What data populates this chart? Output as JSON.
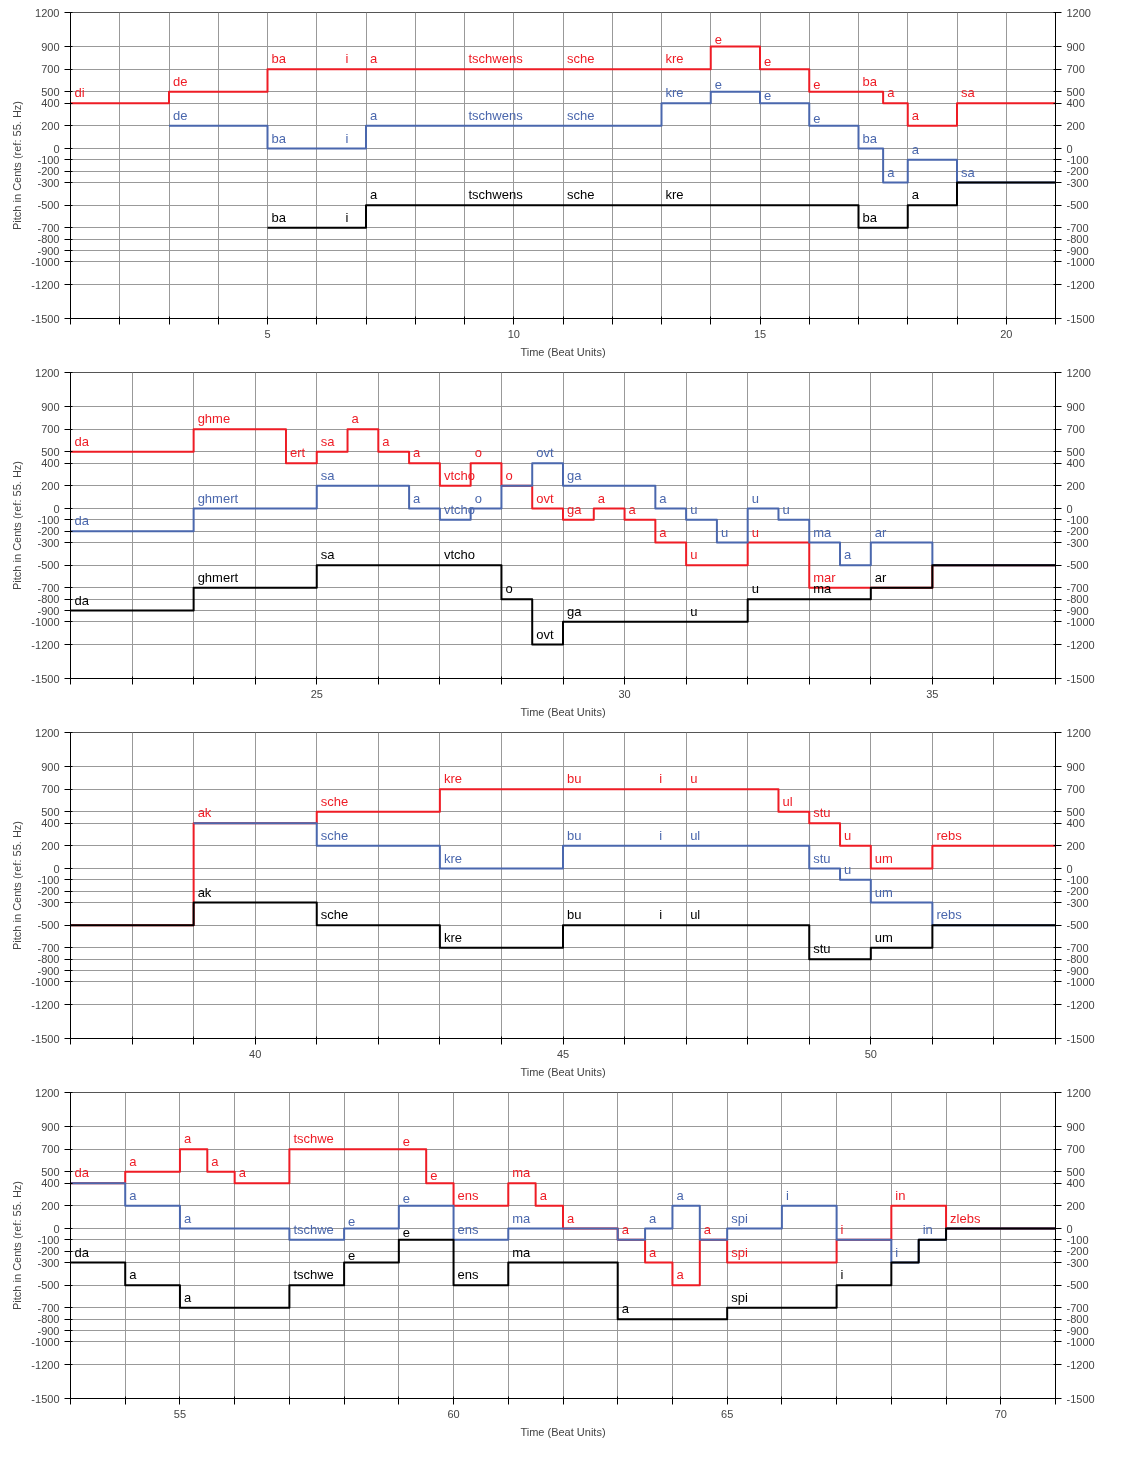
{
  "chart_data": [
    {
      "type": "step",
      "xlabel": "Time (Beat Units)",
      "ylabel": "Pitch in Cents (ref: 55. Hz)",
      "grid": true,
      "xlim": [
        1,
        21
      ],
      "xticks": [
        {
          "value": 1,
          "label": null
        },
        {
          "value": 2,
          "label": null
        },
        {
          "value": 3,
          "label": null
        },
        {
          "value": 4,
          "label": null
        },
        5,
        {
          "value": 6,
          "label": null
        },
        {
          "value": 7,
          "label": null
        },
        {
          "value": 8,
          "label": null
        },
        {
          "value": 9,
          "label": null
        },
        10,
        {
          "value": 11,
          "label": null
        },
        {
          "value": 12,
          "label": null
        },
        {
          "value": 13,
          "label": null
        },
        {
          "value": 14,
          "label": null
        },
        15,
        {
          "value": 16,
          "label": null
        },
        {
          "value": 17,
          "label": null
        },
        {
          "value": 18,
          "label": null
        },
        {
          "value": 19,
          "label": null
        },
        20,
        {
          "value": 21,
          "label": null
        }
      ],
      "ylim": [
        -1500,
        1200
      ],
      "yticks": [
        1200,
        900,
        700,
        500,
        400,
        200,
        0,
        -100,
        -200,
        -300,
        -500,
        -700,
        -800,
        -900,
        -1000,
        -1200,
        -1500
      ],
      "y2lim": [
        -1500,
        1200
      ],
      "y2ticks": [
        1200,
        900,
        700,
        500,
        400,
        200,
        0,
        -100,
        -200,
        -300,
        -500,
        -700,
        -800,
        -900,
        -1000,
        -1200,
        -1500
      ],
      "series": [
        {
          "color": "#ee1c25",
          "x": [
            1,
            3,
            5,
            6.5,
            7,
            9,
            11,
            13,
            14,
            15,
            16,
            17,
            17.5,
            18,
            19,
            21
          ],
          "values": [
            400,
            500,
            700,
            700,
            700,
            700,
            700,
            700,
            900,
            700,
            500,
            500,
            400,
            200,
            400,
            400
          ]
        },
        {
          "color": "#4a67ad",
          "x": [
            3,
            5,
            6.5,
            7,
            9,
            11,
            13,
            14,
            15,
            16,
            17,
            17.5,
            18,
            19,
            21
          ],
          "values": [
            200,
            0,
            0,
            200,
            200,
            200,
            400,
            500,
            400,
            200,
            0,
            -300,
            -100,
            -300,
            -300
          ]
        },
        {
          "color": "#000000",
          "x": [
            5,
            6.5,
            7,
            9,
            11,
            13,
            17,
            18,
            19,
            21
          ],
          "values": [
            -700,
            -700,
            -500,
            -500,
            -500,
            -500,
            -700,
            -500,
            -300,
            -300
          ]
        }
      ],
      "annotations": [
        {
          "text": "di",
          "x": 1,
          "y": 400
        },
        {
          "text": "de",
          "x": 3,
          "y": 500
        },
        {
          "text": "ba",
          "x": 5,
          "y": 700
        },
        {
          "text": "i",
          "x": 6.5,
          "y": 700
        },
        {
          "text": "a",
          "x": 7,
          "y": 700
        },
        {
          "text": "tschwens",
          "x": 9,
          "y": 700
        },
        {
          "text": "sche",
          "x": 11,
          "y": 700
        },
        {
          "text": "kre",
          "x": 13,
          "y": 700
        },
        {
          "text": "e",
          "x": 14,
          "y": 900
        },
        {
          "text": "e",
          "x": 15,
          "y": 700
        },
        {
          "text": "e",
          "x": 16,
          "y": 500
        },
        {
          "text": "ba",
          "x": 17,
          "y": 500
        },
        {
          "text": "a",
          "x": 17.5,
          "y": 400
        },
        {
          "text": "a",
          "x": 18,
          "y": 200
        },
        {
          "text": "sa",
          "x": 19,
          "y": 400
        },
        {
          "text": "de",
          "x": 3,
          "y": 200
        },
        {
          "text": "ba",
          "x": 5,
          "y": 0
        },
        {
          "text": "i",
          "x": 6.5,
          "y": 0
        },
        {
          "text": "a",
          "x": 7,
          "y": 200
        },
        {
          "text": "tschwens",
          "x": 9,
          "y": 200
        },
        {
          "text": "sche",
          "x": 11,
          "y": 200
        },
        {
          "text": "kre",
          "x": 13,
          "y": 400
        },
        {
          "text": "e",
          "x": 14,
          "y": 500
        },
        {
          "text": "e",
          "x": 15,
          "y": 400
        },
        {
          "text": "e",
          "x": 16,
          "y": 200
        },
        {
          "text": "ba",
          "x": 17,
          "y": 0
        },
        {
          "text": "a",
          "x": 17.5,
          "y": -300
        },
        {
          "text": "a",
          "x": 18,
          "y": -100
        },
        {
          "text": "sa",
          "x": 19,
          "y": -300
        },
        {
          "text": "ba",
          "x": 5,
          "y": -700
        },
        {
          "text": "i",
          "x": 6.5,
          "y": -700
        },
        {
          "text": "a",
          "x": 7,
          "y": -500
        },
        {
          "text": "tschwens",
          "x": 9,
          "y": -500
        },
        {
          "text": "sche",
          "x": 11,
          "y": -500
        },
        {
          "text": "kre",
          "x": 13,
          "y": -500
        },
        {
          "text": "ba",
          "x": 17,
          "y": -700
        },
        {
          "text": "a",
          "x": 18,
          "y": -500
        }
      ]
    },
    {
      "type": "step",
      "xlabel": "Time (Beat Units)",
      "ylabel": "Pitch in Cents (ref: 55. Hz)",
      "grid": true,
      "xlim": [
        21,
        37
      ],
      "xticks": [
        {
          "value": 21,
          "label": null
        },
        {
          "value": 22,
          "label": null
        },
        {
          "value": 23,
          "label": null
        },
        {
          "value": 24,
          "label": null
        },
        25,
        {
          "value": 26,
          "label": null
        },
        {
          "value": 27,
          "label": null
        },
        {
          "value": 28,
          "label": null
        },
        {
          "value": 29,
          "label": null
        },
        30,
        {
          "value": 31,
          "label": null
        },
        {
          "value": 32,
          "label": null
        },
        {
          "value": 33,
          "label": null
        },
        {
          "value": 34,
          "label": null
        },
        35,
        {
          "value": 36,
          "label": null
        },
        {
          "value": 37,
          "label": null
        }
      ],
      "ylim": [
        -1500,
        1200
      ],
      "yticks": [
        1200,
        900,
        700,
        500,
        400,
        200,
        0,
        -100,
        -200,
        -300,
        -500,
        -700,
        -800,
        -900,
        -1000,
        -1200,
        -1500
      ],
      "y2lim": [
        -1500,
        1200
      ],
      "y2ticks": [
        1200,
        900,
        700,
        500,
        400,
        200,
        0,
        -100,
        -200,
        -300,
        -500,
        -700,
        -800,
        -900,
        -1000,
        -1200,
        -1500
      ],
      "series": [
        {
          "color": "#ee1c25",
          "x": [
            21,
            23,
            24.5,
            25,
            25.5,
            26,
            26.5,
            27,
            27.5,
            28,
            28.5,
            29,
            29.5,
            30,
            30.5,
            31,
            32,
            33,
            35,
            37
          ],
          "values": [
            500,
            700,
            400,
            500,
            700,
            500,
            400,
            200,
            400,
            200,
            0,
            -100,
            0,
            -100,
            -300,
            -500,
            -300,
            -700,
            -500,
            -500
          ]
        },
        {
          "color": "#4a67ad",
          "x": [
            21,
            23,
            25,
            26.5,
            27,
            27.5,
            28,
            28.5,
            29,
            30.5,
            31,
            31.5,
            32,
            32.5,
            33,
            33.5,
            34,
            35,
            37
          ],
          "values": [
            -200,
            0,
            200,
            0,
            -100,
            0,
            200,
            400,
            200,
            0,
            -100,
            -300,
            0,
            -100,
            -300,
            -500,
            -300,
            -500,
            -500
          ]
        },
        {
          "color": "#000000",
          "x": [
            21,
            23,
            25,
            27,
            28,
            28.5,
            29,
            31,
            32,
            33,
            34,
            35,
            37
          ],
          "values": [
            -900,
            -700,
            -500,
            -500,
            -800,
            -1200,
            -1000,
            -1000,
            -800,
            -800,
            -700,
            -500,
            -500
          ]
        }
      ],
      "annotations": [
        {
          "text": "da",
          "x": 21,
          "y": 500
        },
        {
          "text": "ghme",
          "x": 23,
          "y": 700
        },
        {
          "text": "ert",
          "x": 24.5,
          "y": 400
        },
        {
          "text": "sa",
          "x": 25,
          "y": 500
        },
        {
          "text": "a",
          "x": 25.5,
          "y": 700
        },
        {
          "text": "a",
          "x": 26,
          "y": 500
        },
        {
          "text": "a",
          "x": 26.5,
          "y": 400
        },
        {
          "text": "vtcho",
          "x": 27,
          "y": 200
        },
        {
          "text": "o",
          "x": 27.5,
          "y": 400
        },
        {
          "text": "o",
          "x": 28,
          "y": 200
        },
        {
          "text": "ovt",
          "x": 28.5,
          "y": 0
        },
        {
          "text": "ga",
          "x": 29,
          "y": -100
        },
        {
          "text": "a",
          "x": 29.5,
          "y": 0
        },
        {
          "text": "a",
          "x": 30,
          "y": -100
        },
        {
          "text": "a",
          "x": 30.5,
          "y": -300
        },
        {
          "text": "u",
          "x": 31,
          "y": -500
        },
        {
          "text": "u",
          "x": 32,
          "y": -300
        },
        {
          "text": "mar",
          "x": 33,
          "y": -700
        },
        {
          "text": "da",
          "x": 21,
          "y": -200
        },
        {
          "text": "ghmert",
          "x": 23,
          "y": 0
        },
        {
          "text": "sa",
          "x": 25,
          "y": 200
        },
        {
          "text": "a",
          "x": 26.5,
          "y": 0
        },
        {
          "text": "vtcho",
          "x": 27,
          "y": -100
        },
        {
          "text": "o",
          "x": 27.5,
          "y": 0
        },
        {
          "text": "ovt",
          "x": 28.5,
          "y": 400
        },
        {
          "text": "ga",
          "x": 29,
          "y": 200
        },
        {
          "text": "a",
          "x": 30.5,
          "y": 0
        },
        {
          "text": "u",
          "x": 31,
          "y": -100
        },
        {
          "text": "u",
          "x": 31.5,
          "y": -300
        },
        {
          "text": "u",
          "x": 32,
          "y": 0
        },
        {
          "text": "u",
          "x": 32.5,
          "y": -100
        },
        {
          "text": "ma",
          "x": 33,
          "y": -300
        },
        {
          "text": "a",
          "x": 33.5,
          "y": -500
        },
        {
          "text": "ar",
          "x": 34,
          "y": -300
        },
        {
          "text": "da",
          "x": 21,
          "y": -900
        },
        {
          "text": "ghmert",
          "x": 23,
          "y": -700
        },
        {
          "text": "sa",
          "x": 25,
          "y": -500
        },
        {
          "text": "vtcho",
          "x": 27,
          "y": -500
        },
        {
          "text": "o",
          "x": 28,
          "y": -800
        },
        {
          "text": "ovt",
          "x": 28.5,
          "y": -1200
        },
        {
          "text": "ga",
          "x": 29,
          "y": -1000
        },
        {
          "text": "u",
          "x": 31,
          "y": -1000
        },
        {
          "text": "u",
          "x": 32,
          "y": -800
        },
        {
          "text": "ma",
          "x": 33,
          "y": -800
        },
        {
          "text": "ar",
          "x": 34,
          "y": -700
        }
      ]
    },
    {
      "type": "step",
      "xlabel": "Time (Beat Units)",
      "ylabel": "Pitch in Cents (ref: 55. Hz)",
      "grid": true,
      "xlim": [
        37,
        53
      ],
      "xticks": [
        {
          "value": 37,
          "label": null
        },
        {
          "value": 38,
          "label": null
        },
        {
          "value": 39,
          "label": null
        },
        40,
        {
          "value": 41,
          "label": null
        },
        {
          "value": 42,
          "label": null
        },
        {
          "value": 43,
          "label": null
        },
        {
          "value": 44,
          "label": null
        },
        45,
        {
          "value": 46,
          "label": null
        },
        {
          "value": 47,
          "label": null
        },
        {
          "value": 48,
          "label": null
        },
        {
          "value": 49,
          "label": null
        },
        50,
        {
          "value": 51,
          "label": null
        },
        {
          "value": 52,
          "label": null
        },
        {
          "value": 53,
          "label": null
        }
      ],
      "ylim": [
        -1500,
        1200
      ],
      "yticks": [
        1200,
        900,
        700,
        500,
        400,
        200,
        0,
        -100,
        -200,
        -300,
        -500,
        -700,
        -800,
        -900,
        -1000,
        -1200,
        -1500
      ],
      "y2lim": [
        -1500,
        1200
      ],
      "y2ticks": [
        1200,
        900,
        700,
        500,
        400,
        200,
        0,
        -100,
        -200,
        -300,
        -500,
        -700,
        -800,
        -900,
        -1000,
        -1200,
        -1500
      ],
      "series": [
        {
          "color": "#ee1c25",
          "x": [
            37,
            39,
            41,
            43,
            45,
            46.5,
            47,
            48.5,
            49,
            49.5,
            50,
            51,
            53
          ],
          "values": [
            -500,
            400,
            500,
            700,
            700,
            700,
            700,
            500,
            400,
            200,
            0,
            200,
            200
          ]
        },
        {
          "color": "#4a67ad",
          "x": [
            39,
            41,
            43,
            45,
            46.5,
            47,
            49,
            49.5,
            50,
            51,
            53
          ],
          "values": [
            400,
            200,
            0,
            200,
            200,
            200,
            0,
            -100,
            -300,
            -500,
            -500
          ]
        },
        {
          "color": "#000000",
          "x": [
            37,
            39,
            41,
            43,
            45,
            46.5,
            47,
            49,
            50,
            51,
            53
          ],
          "values": [
            -500,
            -300,
            -500,
            -700,
            -500,
            -500,
            -500,
            -800,
            -700,
            -500,
            -500
          ]
        }
      ],
      "annotations": [
        {
          "text": "ak",
          "x": 39,
          "y": 400
        },
        {
          "text": "sche",
          "x": 41,
          "y": 500
        },
        {
          "text": "kre",
          "x": 43,
          "y": 700
        },
        {
          "text": "bu",
          "x": 45,
          "y": 700
        },
        {
          "text": "i",
          "x": 46.5,
          "y": 700
        },
        {
          "text": "u",
          "x": 47,
          "y": 700
        },
        {
          "text": "ul",
          "x": 48.5,
          "y": 500
        },
        {
          "text": "stu",
          "x": 49,
          "y": 400
        },
        {
          "text": "u",
          "x": 49.5,
          "y": 200
        },
        {
          "text": "um",
          "x": 50,
          "y": 0
        },
        {
          "text": "rebs",
          "x": 51,
          "y": 200
        },
        {
          "text": "sche",
          "x": 41,
          "y": 200
        },
        {
          "text": "kre",
          "x": 43,
          "y": 0
        },
        {
          "text": "bu",
          "x": 45,
          "y": 200
        },
        {
          "text": "i",
          "x": 46.5,
          "y": 200
        },
        {
          "text": "ul",
          "x": 47,
          "y": 200
        },
        {
          "text": "stu",
          "x": 49,
          "y": 0
        },
        {
          "text": "u",
          "x": 49.5,
          "y": -100
        },
        {
          "text": "um",
          "x": 50,
          "y": -300
        },
        {
          "text": "rebs",
          "x": 51,
          "y": -500
        },
        {
          "text": "ak",
          "x": 39,
          "y": -300
        },
        {
          "text": "sche",
          "x": 41,
          "y": -500
        },
        {
          "text": "kre",
          "x": 43,
          "y": -700
        },
        {
          "text": "bu",
          "x": 45,
          "y": -500
        },
        {
          "text": "i",
          "x": 46.5,
          "y": -500
        },
        {
          "text": "ul",
          "x": 47,
          "y": -500
        },
        {
          "text": "stu",
          "x": 49,
          "y": -800
        },
        {
          "text": "um",
          "x": 50,
          "y": -700
        }
      ]
    },
    {
      "type": "step",
      "xlabel": "Time (Beat Units)",
      "ylabel": "Pitch in Cents (ref: 55. Hz)",
      "grid": true,
      "xlim": [
        53,
        71
      ],
      "xticks": [
        {
          "value": 53,
          "label": null
        },
        {
          "value": 54,
          "label": null
        },
        55,
        {
          "value": 56,
          "label": null
        },
        {
          "value": 57,
          "label": null
        },
        {
          "value": 58,
          "label": null
        },
        {
          "value": 59,
          "label": null
        },
        60,
        {
          "value": 61,
          "label": null
        },
        {
          "value": 62,
          "label": null
        },
        {
          "value": 63,
          "label": null
        },
        {
          "value": 64,
          "label": null
        },
        65,
        {
          "value": 66,
          "label": null
        },
        {
          "value": 67,
          "label": null
        },
        {
          "value": 68,
          "label": null
        },
        {
          "value": 69,
          "label": null
        },
        70,
        {
          "value": 71,
          "label": null
        }
      ],
      "ylim": [
        -1500,
        1200
      ],
      "yticks": [
        1200,
        900,
        700,
        500,
        400,
        200,
        0,
        -100,
        -200,
        -300,
        -500,
        -700,
        -800,
        -900,
        -1000,
        -1200,
        -1500
      ],
      "y2lim": [
        -1500,
        1200
      ],
      "y2ticks": [
        1200,
        900,
        700,
        500,
        400,
        200,
        0,
        -100,
        -200,
        -300,
        -500,
        -700,
        -800,
        -900,
        -1000,
        -1200,
        -1500
      ],
      "series": [
        {
          "color": "#ee1c25",
          "x": [
            53,
            54,
            55,
            55.5,
            56,
            57,
            59,
            59.5,
            60,
            61,
            61.5,
            62,
            63,
            63.5,
            64,
            64.5,
            65,
            67,
            68,
            69,
            71
          ],
          "values": [
            400,
            500,
            700,
            500,
            400,
            700,
            700,
            400,
            200,
            400,
            200,
            0,
            -100,
            -300,
            -500,
            -100,
            -300,
            -100,
            200,
            0,
            0
          ]
        },
        {
          "color": "#4a67ad",
          "x": [
            53,
            54,
            55,
            57,
            58,
            59,
            60,
            61,
            63,
            63.5,
            64,
            64.5,
            65,
            66,
            67,
            68,
            68.5,
            69,
            71
          ],
          "values": [
            400,
            200,
            0,
            -100,
            0,
            200,
            -100,
            0,
            -100,
            0,
            200,
            -100,
            0,
            200,
            -100,
            -300,
            -100,
            0,
            0
          ]
        },
        {
          "color": "#000000",
          "x": [
            53,
            54,
            55,
            57,
            58,
            59,
            60,
            61,
            63,
            65,
            67,
            68,
            68.5,
            69,
            71
          ],
          "values": [
            -300,
            -500,
            -700,
            -500,
            -300,
            -100,
            -500,
            -300,
            -800,
            -700,
            -500,
            -300,
            -100,
            0,
            0
          ]
        }
      ],
      "annotations": [
        {
          "text": "da",
          "x": 53,
          "y": 400
        },
        {
          "text": "a",
          "x": 54,
          "y": 500
        },
        {
          "text": "a",
          "x": 55,
          "y": 700
        },
        {
          "text": "a",
          "x": 55.5,
          "y": 500
        },
        {
          "text": "a",
          "x": 56,
          "y": 400
        },
        {
          "text": "tschwe",
          "x": 57,
          "y": 700
        },
        {
          "text": "e",
          "x": 59,
          "y": 700
        },
        {
          "text": "e",
          "x": 59.5,
          "y": 400
        },
        {
          "text": "ens",
          "x": 60,
          "y": 200
        },
        {
          "text": "ma",
          "x": 61,
          "y": 400
        },
        {
          "text": "a",
          "x": 61.5,
          "y": 200
        },
        {
          "text": "a",
          "x": 62,
          "y": 0
        },
        {
          "text": "a",
          "x": 63,
          "y": -100
        },
        {
          "text": "a",
          "x": 63.5,
          "y": -300
        },
        {
          "text": "a",
          "x": 64,
          "y": -500
        },
        {
          "text": "a",
          "x": 64.5,
          "y": -100
        },
        {
          "text": "spi",
          "x": 65,
          "y": -300
        },
        {
          "text": "i",
          "x": 67,
          "y": -100
        },
        {
          "text": "in",
          "x": 68,
          "y": 200
        },
        {
          "text": "a",
          "x": 54,
          "y": 200
        },
        {
          "text": "a",
          "x": 55,
          "y": 0
        },
        {
          "text": "tschwe",
          "x": 57,
          "y": -100
        },
        {
          "text": "e",
          "x": 58,
          "y": 0
        },
        {
          "text": "e",
          "x": 59,
          "y": 200
        },
        {
          "text": "ens",
          "x": 60,
          "y": -100
        },
        {
          "text": "ma",
          "x": 61,
          "y": 0
        },
        {
          "text": "a",
          "x": 63.5,
          "y": 0
        },
        {
          "text": "a",
          "x": 64,
          "y": 200
        },
        {
          "text": "spi",
          "x": 65,
          "y": 0
        },
        {
          "text": "i",
          "x": 66,
          "y": 200
        },
        {
          "text": "da",
          "x": 53,
          "y": -300
        },
        {
          "text": "a",
          "x": 54,
          "y": -500
        },
        {
          "text": "a",
          "x": 55,
          "y": -700
        },
        {
          "text": "tschwe",
          "x": 57,
          "y": -500
        },
        {
          "text": "e",
          "x": 58,
          "y": -300
        },
        {
          "text": "e",
          "x": 59,
          "y": -100
        },
        {
          "text": "ens",
          "x": 60,
          "y": -500
        },
        {
          "text": "ma",
          "x": 61,
          "y": -300
        },
        {
          "text": "a",
          "x": 63,
          "y": -800
        },
        {
          "text": "spi",
          "x": 65,
          "y": -700
        },
        {
          "text": "i",
          "x": 67,
          "y": -500
        },
        {
          "text": "i",
          "x": 68,
          "y": -300
        },
        {
          "text": "in",
          "x": 68.5,
          "y": -100
        },
        {
          "text": "zlebs",
          "x": 69,
          "y": 0
        }
      ]
    }
  ]
}
